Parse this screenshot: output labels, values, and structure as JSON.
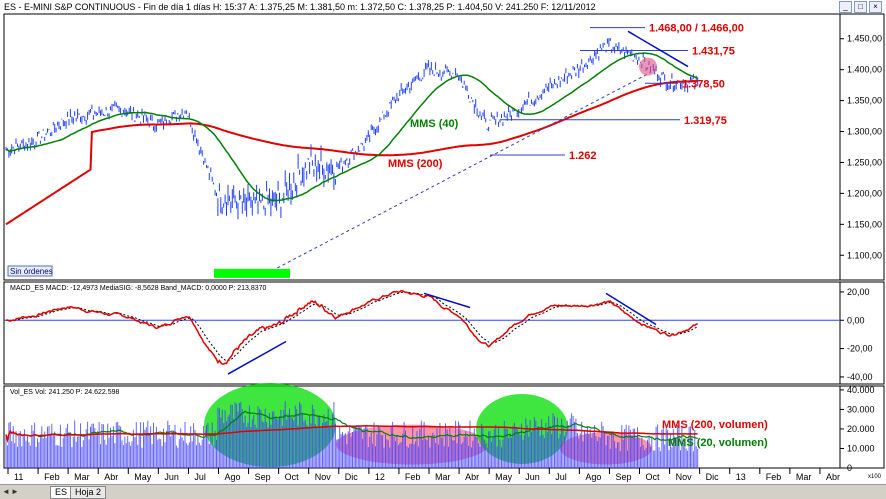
{
  "window": {
    "title": "ES - E-MINI S&P CONTINUOUS - Fin de día 1 días  H: 15:37  A: 1.375,25  M: 1.381,50  m: 1.372,50  C: 1.378,25  P: 1.404,50  V: 241.250  F: 12/11/2012",
    "controls": [
      "_",
      "□",
      "×"
    ]
  },
  "tabs": {
    "items": [
      "ES",
      "Hoja 2"
    ],
    "nav": [
      "◄",
      "►"
    ]
  },
  "chart_data": [
    {
      "type": "line",
      "panel": "price",
      "months": [
        "11",
        "Feb",
        "Mar",
        "Abr",
        "May",
        "Jun",
        "Jul",
        "Ago",
        "Sep",
        "Oct",
        "Nov",
        "Dic",
        "12",
        "Feb",
        "Mar",
        "Abr",
        "May",
        "Jun",
        "Jul",
        "Ago",
        "Sep",
        "Oct",
        "Nov",
        "Dic",
        "13",
        "Feb",
        "Mar",
        "Abr"
      ],
      "y_ticks": [
        "1.450,00",
        "1.400,00",
        "1.350,00",
        "1.300,00",
        "1.250,00",
        "1.200,00",
        "1.150,00",
        "1.100,00"
      ],
      "ylim": [
        1060,
        1490
      ],
      "price_points": [
        [
          0,
          1270
        ],
        [
          1,
          1285
        ],
        [
          2,
          1320
        ],
        [
          3,
          1330
        ],
        [
          4,
          1335
        ],
        [
          5,
          1310
        ],
        [
          6,
          1335
        ],
        [
          7,
          1200
        ],
        [
          8,
          1180
        ],
        [
          9,
          1185
        ],
        [
          10,
          1245
        ],
        [
          11,
          1240
        ],
        [
          12,
          1285
        ],
        [
          13,
          1355
        ],
        [
          14,
          1400
        ],
        [
          15,
          1395
        ],
        [
          16,
          1310
        ],
        [
          17,
          1335
        ],
        [
          18,
          1370
        ],
        [
          19,
          1400
        ],
        [
          20,
          1440
        ],
        [
          21,
          1420
        ],
        [
          22,
          1380
        ],
        [
          23,
          1378
        ]
      ],
      "annotations": [
        {
          "text": "1.468,00 / 1.466,00",
          "color": "#e00000"
        },
        {
          "text": "1.431,75",
          "color": "#e00000"
        },
        {
          "text": "1.378,50",
          "color": "#e00000"
        },
        {
          "text": "1.319,75",
          "color": "#e00000"
        },
        {
          "text": "1.262",
          "color": "#e00000"
        },
        {
          "text": "MMS (40)",
          "color": "#008000"
        },
        {
          "text": "MMS (200)",
          "color": "#e00000"
        }
      ],
      "status_label": "Sin órdenes"
    },
    {
      "type": "line",
      "panel": "macd",
      "header": "MACD_ES  MACD: -12,4973  MediaSIG: -8,5628  Band_MACD: 0,0000  P: 213,8370",
      "y_ticks": [
        "20,00",
        "0,00",
        "-20,00",
        "-40,00"
      ],
      "ylim": [
        -45,
        27
      ]
    },
    {
      "type": "bar",
      "panel": "volume",
      "header": "Vol_ES  Vol: 241.250  P: 24.622.598",
      "y_ticks": [
        "40.000",
        "30.000",
        "20.000",
        "10.000",
        "0"
      ],
      "y_unit": "x100",
      "ylim": [
        0,
        42000
      ],
      "annotations": [
        {
          "text": "MMS (200, volumen)",
          "color": "#e00000"
        },
        {
          "text": "MMS (20, volumen)",
          "color": "#008000"
        }
      ]
    }
  ]
}
